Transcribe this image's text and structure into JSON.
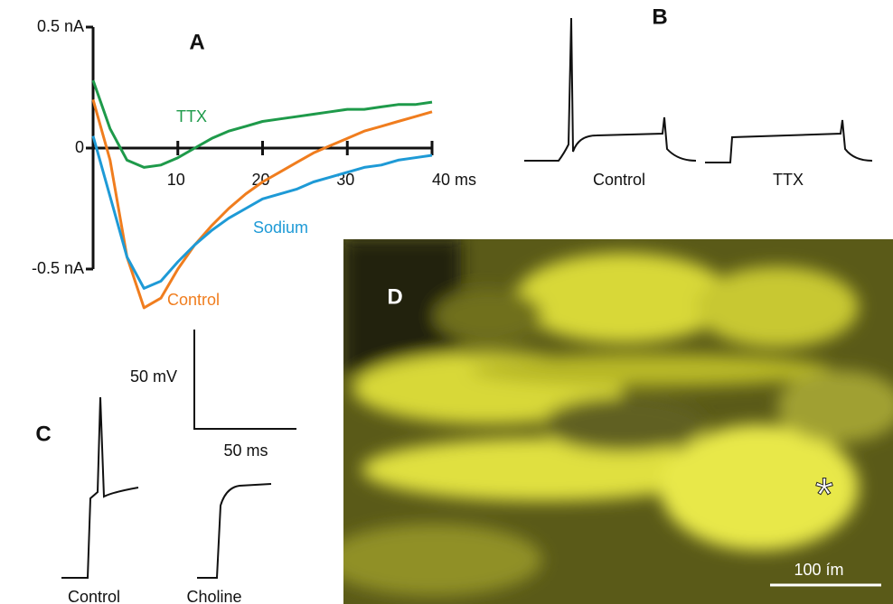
{
  "chart_data": {
    "type": "line",
    "panel": "A",
    "x": [
      0,
      2,
      4,
      6,
      8,
      10,
      12,
      14,
      16,
      18,
      20,
      22,
      24,
      26,
      28,
      30,
      32,
      34,
      36,
      38,
      40
    ],
    "series": [
      {
        "name": "TTX",
        "color": "#1e9a4a",
        "values": [
          0.28,
          0.08,
          -0.05,
          -0.08,
          -0.07,
          -0.04,
          0,
          0.04,
          0.07,
          0.09,
          0.11,
          0.12,
          0.13,
          0.14,
          0.15,
          0.16,
          0.16,
          0.17,
          0.18,
          0.18,
          0.19
        ]
      },
      {
        "name": "Control",
        "color": "#f07d1e",
        "values": [
          0.2,
          -0.05,
          -0.45,
          -0.66,
          -0.62,
          -0.5,
          -0.4,
          -0.32,
          -0.25,
          -0.19,
          -0.14,
          -0.1,
          -0.06,
          -0.02,
          0.01,
          0.04,
          0.07,
          0.09,
          0.11,
          0.13,
          0.15
        ]
      },
      {
        "name": "Sodium",
        "color": "#1e9ad6",
        "values": [
          0.05,
          -0.2,
          -0.45,
          -0.58,
          -0.55,
          -0.47,
          -0.4,
          -0.34,
          -0.29,
          -0.25,
          -0.21,
          -0.19,
          -0.17,
          -0.14,
          -0.12,
          -0.1,
          -0.08,
          -0.07,
          -0.05,
          -0.04,
          -0.03
        ]
      }
    ],
    "xlim": [
      0,
      40
    ],
    "ylim": [
      -0.5,
      0.5
    ],
    "xticks": [
      10,
      20,
      30,
      {
        "value": 40,
        "label": "40 ms"
      }
    ],
    "yticks": [
      {
        "value": 0.5,
        "label": "0.5 nA"
      },
      0,
      {
        "value": -0.5,
        "label": "-0.5 nA"
      }
    ]
  },
  "panels": {
    "B": {
      "label": "B",
      "traces": [
        "Control",
        "TTX"
      ]
    },
    "C": {
      "label": "C",
      "traces": [
        "Control",
        "Choline"
      ],
      "scale_v": "50 mV",
      "scale_t": "50 ms"
    },
    "D": {
      "label": "D",
      "marker": "*",
      "scale": "100 ím"
    }
  }
}
